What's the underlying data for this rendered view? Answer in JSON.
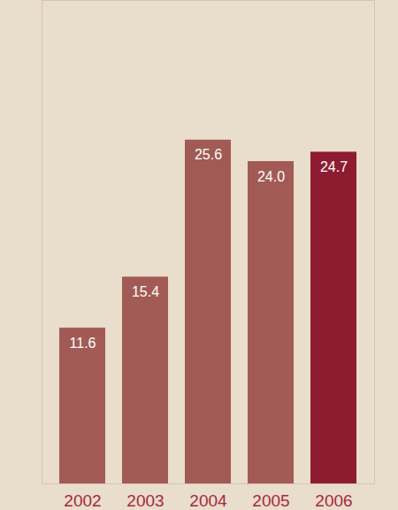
{
  "chart_data": {
    "type": "bar",
    "categories": [
      "2002",
      "2003",
      "2004",
      "2005",
      "2006"
    ],
    "values": [
      11.6,
      15.4,
      25.6,
      24.0,
      24.7
    ],
    "value_labels": [
      "11.6",
      "15.4",
      "25.6",
      "24.0",
      "24.7"
    ],
    "colors": [
      "#a25a55",
      "#a25a55",
      "#a25a55",
      "#a25a55",
      "#8e1c31"
    ],
    "ylim": [
      0,
      36
    ],
    "yticks": [],
    "data_labels": true,
    "tick_labels": "x"
  }
}
